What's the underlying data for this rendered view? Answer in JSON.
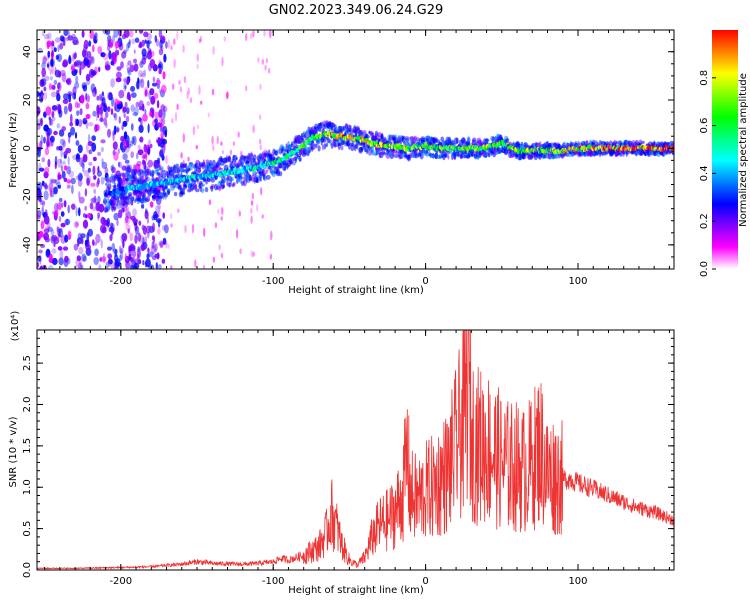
{
  "title": "GN02.2023.349.06.24.G29",
  "colormap": [
    "#ffffff",
    "#ff00ff",
    "#8000ff",
    "#0000ff",
    "#0080ff",
    "#00ffff",
    "#00ff80",
    "#00ff00",
    "#80ff00",
    "#ffff00",
    "#ff8000",
    "#ff0000"
  ],
  "chart_data": [
    {
      "type": "heatmap",
      "xlabel": "Height of straight line (km)",
      "ylabel": "Frequency (Hz)",
      "xlim": [
        -255,
        163
      ],
      "ylim": [
        -50,
        49
      ],
      "xticks": [
        -200,
        -100,
        0,
        100
      ],
      "xtick_labels": [
        "-200",
        "-100",
        "0",
        "100"
      ],
      "yticks": [
        -40,
        -20,
        0,
        20,
        40
      ],
      "ytick_labels": [
        "-40",
        "-20",
        "0",
        "20",
        "40"
      ],
      "colorbar": {
        "label": "Normalized spectral amplitude",
        "range": [
          0,
          1
        ],
        "ticks": [
          0.0,
          0.2,
          0.4,
          0.6,
          0.8
        ],
        "tick_labels": [
          "0.0",
          "0.2",
          "0.4",
          "0.6",
          "0.8"
        ]
      },
      "ridge": {
        "x": [
          -210,
          -190,
          -170,
          -150,
          -130,
          -110,
          -95,
          -85,
          -75,
          -65,
          -55,
          -45,
          -35,
          -25,
          -10,
          0,
          10,
          25,
          40,
          50,
          60,
          75,
          90,
          105,
          115,
          130,
          163
        ],
        "y": [
          -19,
          -16,
          -14,
          -12,
          -10,
          -8,
          -5,
          -1,
          4,
          6,
          5,
          4,
          2,
          1,
          0,
          1,
          0,
          0,
          0,
          2,
          -1,
          -1,
          -1,
          0,
          0,
          0,
          0
        ],
        "amplitude": [
          0.35,
          0.4,
          0.45,
          0.45,
          0.5,
          0.5,
          0.55,
          0.6,
          0.65,
          0.75,
          0.85,
          0.85,
          0.8,
          0.75,
          0.7,
          0.7,
          0.7,
          0.7,
          0.7,
          0.7,
          0.75,
          0.75,
          0.8,
          0.85,
          0.95,
          1.0,
          1.0
        ]
      }
    },
    {
      "type": "line",
      "xlabel": "Height of straight line (km)",
      "ylabel": "SNR (10 * v/v)",
      "y_multiplier": "(x10⁴)",
      "xlim": [
        -255,
        163
      ],
      "ylim": [
        0,
        2.9
      ],
      "xticks": [
        -200,
        -100,
        0,
        100
      ],
      "xtick_labels": [
        "-200",
        "-100",
        "0",
        "100"
      ],
      "yticks": [
        0.0,
        0.5,
        1.0,
        1.5,
        2.0,
        2.5
      ],
      "ytick_labels": [
        "0.0",
        "0.5",
        "1.0",
        "1.5",
        "2.0",
        "2.5"
      ],
      "series": [
        {
          "color": "#ee3333",
          "x": [
            -255,
            -230,
            -200,
            -180,
            -160,
            -150,
            -140,
            -120,
            -110,
            -100,
            -95,
            -90,
            -80,
            -70,
            -65,
            -62,
            -58,
            -55,
            -50,
            -45,
            -40,
            -35,
            -30,
            -25,
            -20,
            -15,
            -12,
            -10,
            -5,
            0,
            5,
            10,
            15,
            20,
            25,
            28,
            30,
            35,
            40,
            45,
            50,
            55,
            60,
            65,
            70,
            75,
            78,
            80,
            85,
            90,
            95,
            100,
            110,
            120,
            130,
            140,
            150,
            163
          ],
          "y": [
            0.02,
            0.02,
            0.03,
            0.04,
            0.07,
            0.1,
            0.08,
            0.07,
            0.08,
            0.1,
            0.14,
            0.12,
            0.18,
            0.28,
            0.45,
            0.7,
            0.5,
            0.3,
            0.12,
            0.06,
            0.15,
            0.4,
            0.55,
            0.6,
            0.7,
            0.9,
            1.4,
            0.9,
            0.85,
            0.95,
            1.0,
            1.1,
            1.2,
            1.5,
            1.8,
            2.4,
            1.6,
            1.5,
            1.5,
            1.4,
            1.3,
            1.25,
            1.25,
            1.2,
            1.3,
            1.5,
            1.3,
            1.15,
            1.15,
            1.1,
            1.1,
            1.05,
            0.98,
            0.9,
            0.82,
            0.75,
            0.7,
            0.6
          ]
        }
      ]
    }
  ]
}
